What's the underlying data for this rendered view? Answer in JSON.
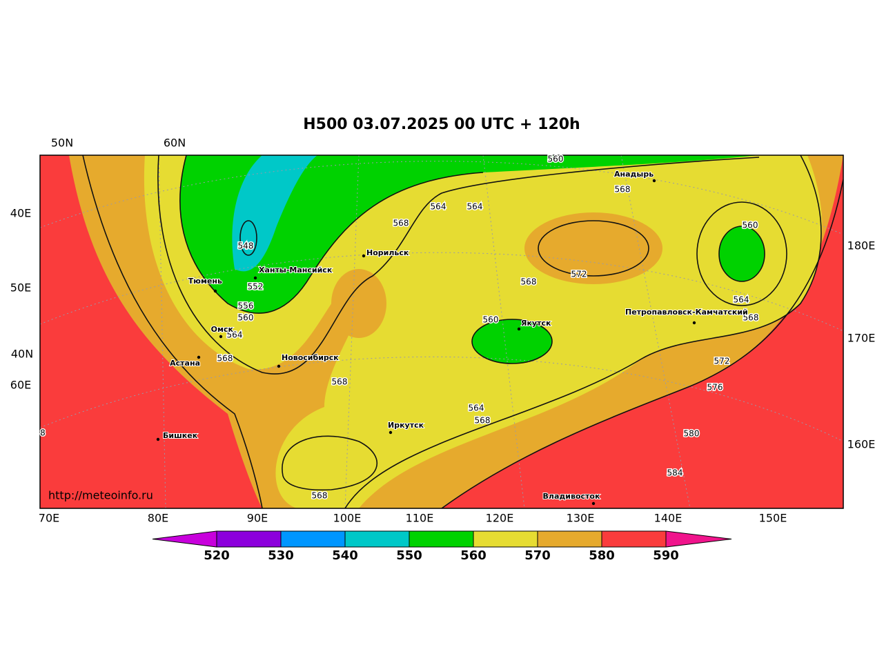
{
  "title": "H500  03.07.2025 00 UTC + 120h",
  "top_labels": [
    "50N",
    "60N"
  ],
  "left_labels": [
    "40E",
    "50E",
    "40N",
    "60E"
  ],
  "right_labels": [
    "180E",
    "170E",
    "160E"
  ],
  "bottom_labels": [
    "70E",
    "80E",
    "90E",
    "100E",
    "110E",
    "120E",
    "130E",
    "140E",
    "150E"
  ],
  "watermark": "http://meteoinfo.ru",
  "cities": [
    "Анадырь",
    "Норильск",
    "Ханты-Мансийск",
    "Тюмень",
    "Якутск",
    "Петропавловск-Камчатский",
    "Омск",
    "Новосибирск",
    "Астана",
    "Иркутск",
    "Бишкек",
    "Владивосток"
  ],
  "contour_labels": [
    "560",
    "568",
    "564",
    "564",
    "568",
    "560",
    "548",
    "572",
    "568",
    "552",
    "564",
    "556",
    "568",
    "560",
    "560",
    "564",
    "568",
    "572",
    "568",
    "576",
    "564",
    "568",
    "580",
    "584",
    "568",
    "8"
  ],
  "colorbar": {
    "levels": [
      520,
      530,
      540,
      550,
      560,
      570,
      580,
      590
    ],
    "colors": [
      "#c800dc",
      "#8c00dc",
      "#0096ff",
      "#00c8c8",
      "#00d200",
      "#e6dc32",
      "#e6aa2d",
      "#fa3c3c",
      "#f0148c"
    ]
  }
}
